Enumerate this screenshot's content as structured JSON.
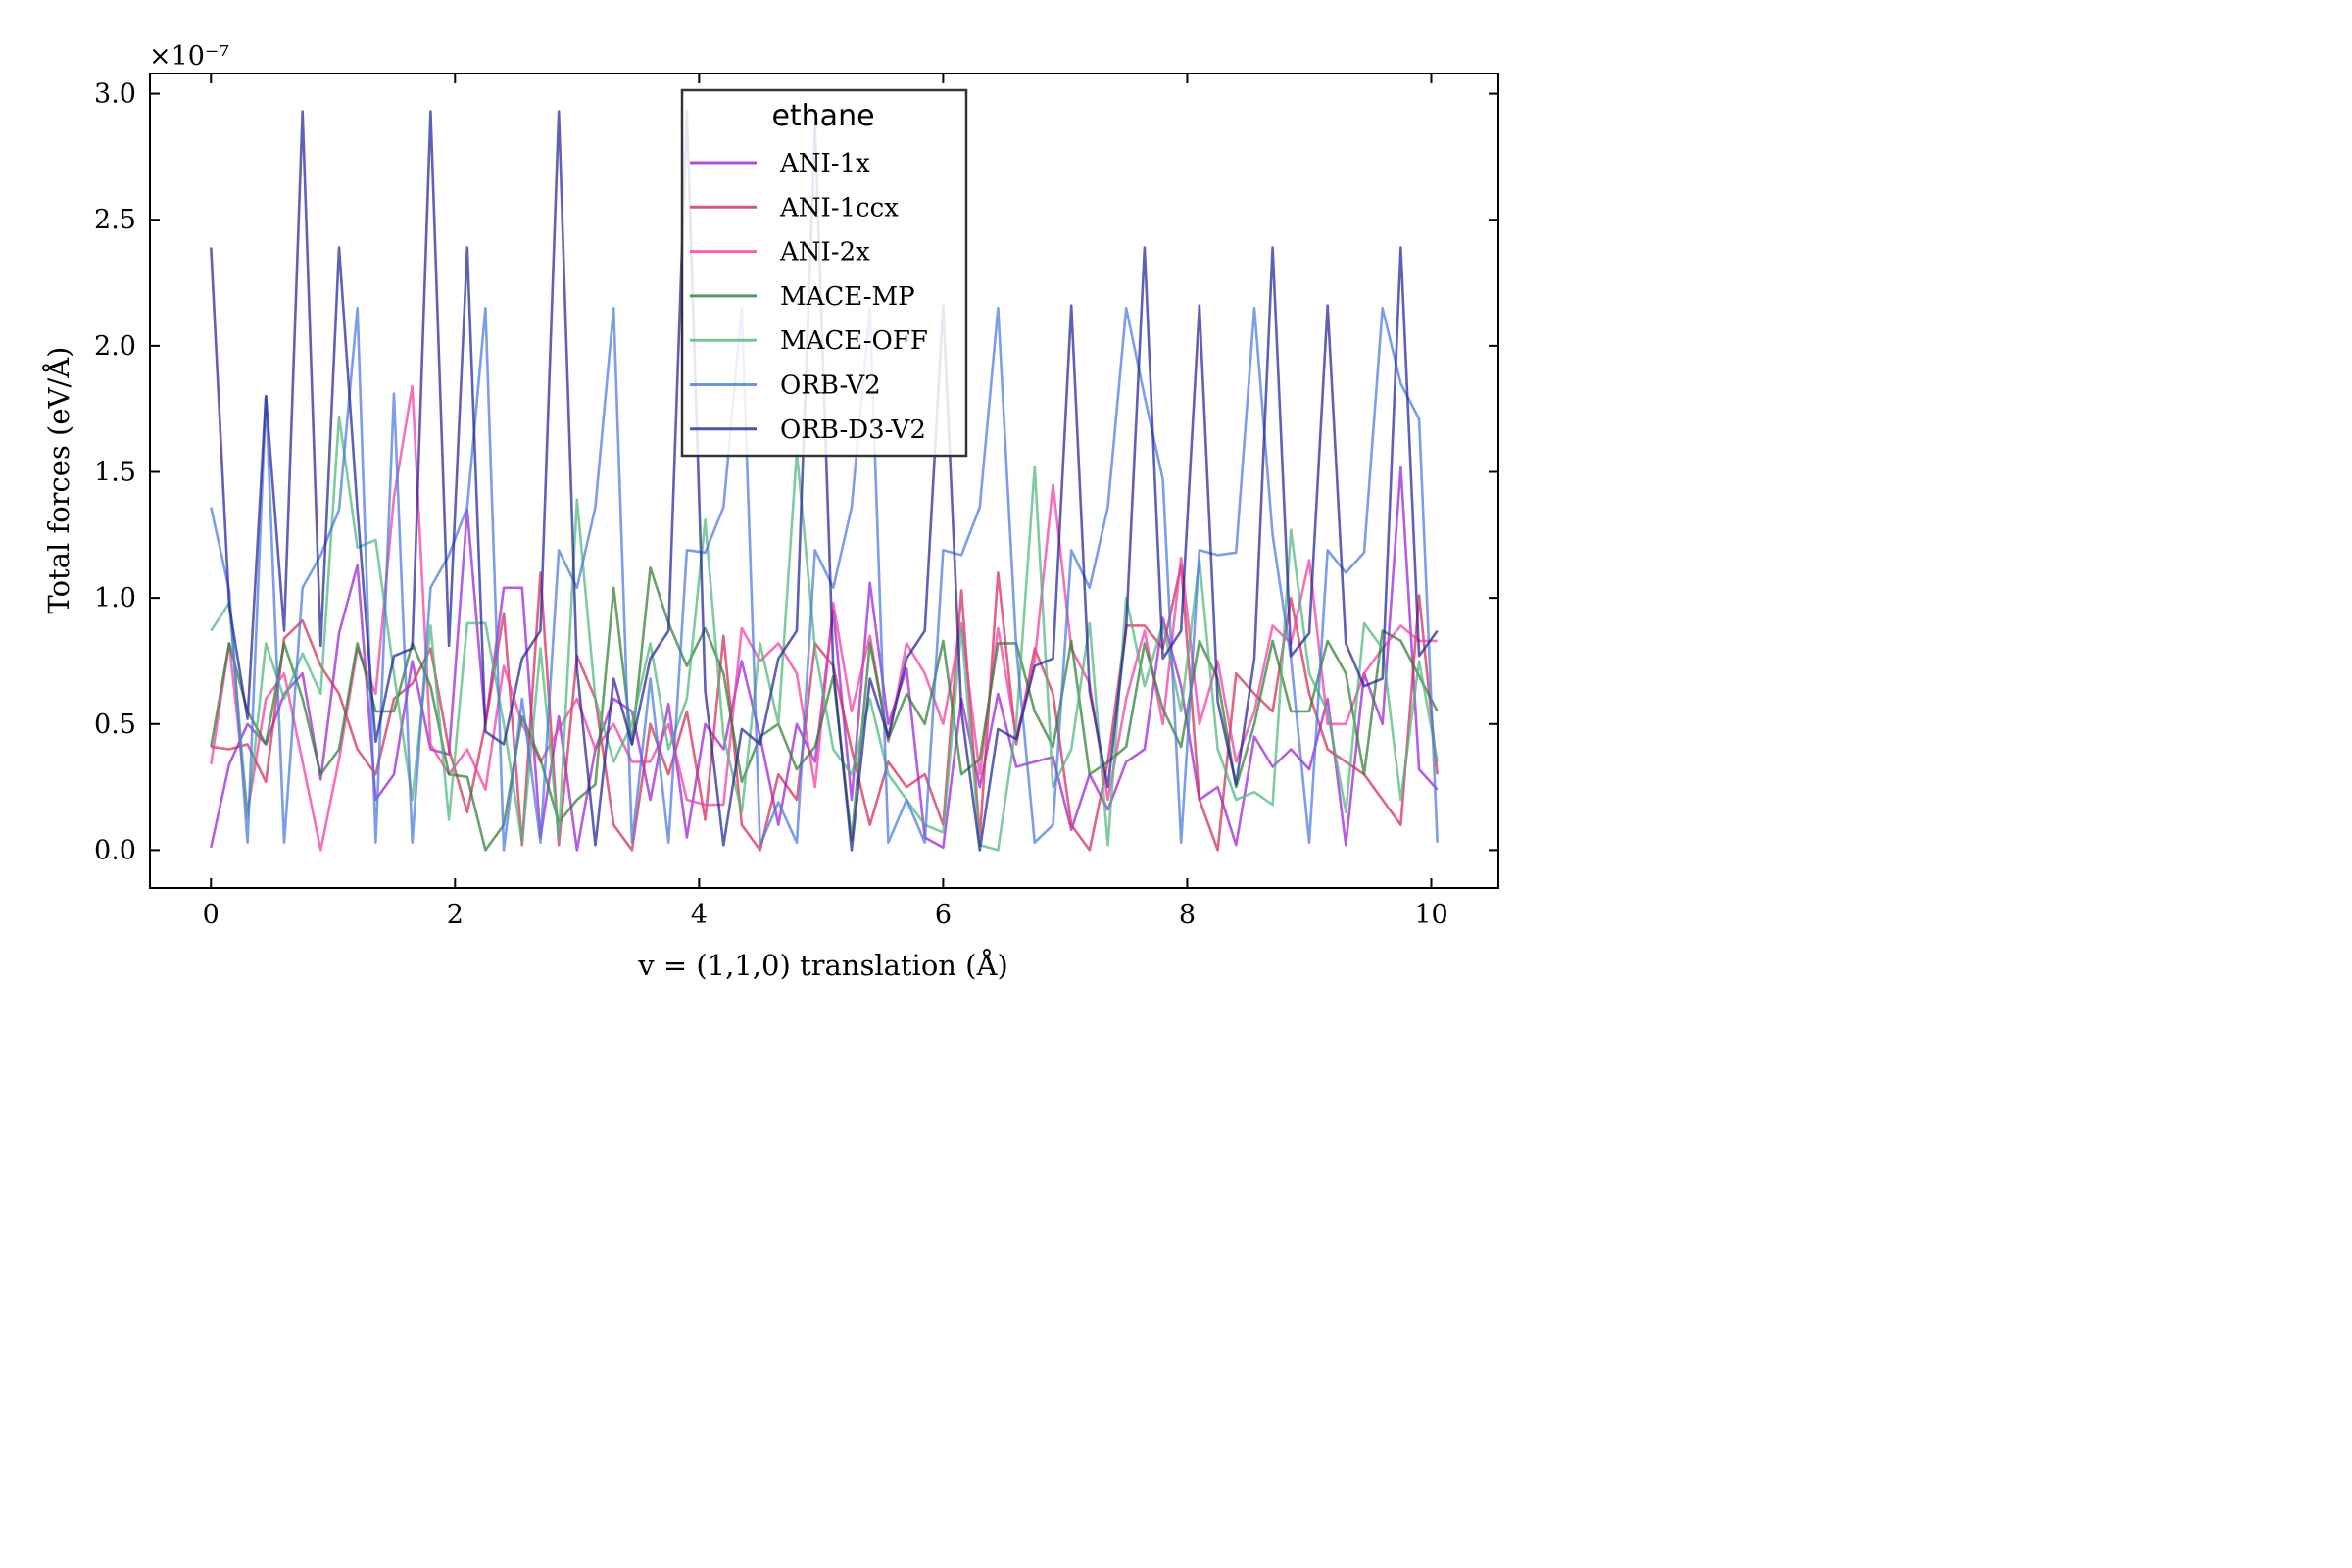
{
  "chart_data": {
    "type": "line",
    "xlabel": "v = (1,1,0)   translation (Å)",
    "ylabel": "Total forces   (eV/Å)",
    "y_multiplier": "×10⁻⁷",
    "xlim": [
      -0.5,
      10.55
    ],
    "ylim": [
      -0.15,
      3.08
    ],
    "xticks": [
      "0",
      "2",
      "4",
      "6",
      "8",
      "10"
    ],
    "yticks": [
      "0.0",
      "0.5",
      "1.0",
      "1.5",
      "2.0",
      "2.5",
      "3.0"
    ],
    "grid": false,
    "legend": {
      "title": "ethane",
      "placement": "top-center"
    },
    "x": [
      0,
      0.15,
      0.3,
      0.45,
      0.6,
      0.75,
      0.9,
      1.05,
      1.2,
      1.35,
      1.5,
      1.65,
      1.8,
      1.95,
      2.1,
      2.25,
      2.4,
      2.55,
      2.7,
      2.85,
      3.0,
      3.15,
      3.3,
      3.45,
      3.6,
      3.75,
      3.9,
      4.05,
      4.2,
      4.35,
      4.5,
      4.65,
      4.8,
      4.95,
      5.1,
      5.25,
      5.4,
      5.55,
      5.7,
      5.85,
      6.0,
      6.15,
      6.3,
      6.45,
      6.6,
      6.75,
      6.9,
      7.05,
      7.2,
      7.35,
      7.5,
      7.65,
      7.8,
      7.95,
      8.1,
      8.25,
      8.4,
      8.55,
      8.7,
      8.85,
      9.0,
      9.15,
      9.3,
      9.45,
      9.6,
      9.75,
      9.9,
      10.05
    ],
    "series": [
      {
        "name": "ANI-1x",
        "color": "#9b1fd6",
        "values": [
          0.01,
          0.34,
          0.5,
          0.42,
          0.62,
          0.7,
          0.28,
          0.86,
          1.13,
          0.2,
          0.3,
          0.75,
          0.4,
          0.38,
          1.35,
          0.5,
          1.04,
          1.04,
          0.05,
          0.53,
          0.0,
          0.4,
          0.6,
          0.55,
          0.2,
          0.58,
          0.05,
          0.5,
          0.4,
          0.75,
          0.45,
          0.1,
          0.5,
          0.35,
          0.95,
          0.2,
          1.06,
          0.5,
          0.72,
          0.05,
          0.01,
          0.6,
          0.25,
          0.62,
          0.33,
          0.35,
          0.37,
          0.08,
          0.3,
          0.16,
          0.35,
          0.4,
          0.92,
          0.65,
          0.2,
          0.25,
          0.02,
          0.45,
          0.33,
          0.4,
          0.32,
          0.6,
          0.02,
          0.7,
          0.5,
          1.52,
          0.32,
          0.24
        ]
      },
      {
        "name": "ANI-1ccx",
        "color": "#d12a56",
        "values": [
          0.41,
          0.4,
          0.42,
          0.27,
          0.84,
          0.91,
          0.73,
          0.62,
          0.4,
          0.3,
          0.6,
          0.66,
          0.8,
          0.4,
          0.15,
          0.5,
          0.94,
          0.02,
          1.1,
          0.02,
          0.77,
          0.6,
          0.1,
          0.0,
          0.5,
          0.3,
          0.55,
          0.12,
          0.85,
          0.1,
          0.0,
          0.3,
          0.2,
          0.82,
          0.73,
          0.4,
          0.1,
          0.35,
          0.25,
          0.3,
          0.1,
          1.03,
          0.05,
          1.1,
          0.42,
          0.8,
          0.62,
          0.1,
          0.0,
          0.35,
          0.89,
          0.89,
          0.8,
          1.13,
          0.2,
          0.0,
          0.7,
          0.62,
          0.55,
          1.0,
          0.62,
          0.4,
          0.35,
          0.3,
          0.2,
          0.1,
          1.01,
          0.3
        ]
      },
      {
        "name": "ANI-2x",
        "color": "#f23aa2",
        "values": [
          0.34,
          0.82,
          0.15,
          0.6,
          0.7,
          0.35,
          0.0,
          0.36,
          0.8,
          0.62,
          1.4,
          1.84,
          0.42,
          0.3,
          0.4,
          0.24,
          0.73,
          0.5,
          0.35,
          0.48,
          0.6,
          0.4,
          0.5,
          0.35,
          0.35,
          0.5,
          0.2,
          0.18,
          0.18,
          0.88,
          0.75,
          0.82,
          0.7,
          0.25,
          0.98,
          0.55,
          0.85,
          0.43,
          0.82,
          0.7,
          0.5,
          0.9,
          0.3,
          0.88,
          0.45,
          0.75,
          1.45,
          0.8,
          0.66,
          0.2,
          0.6,
          0.87,
          0.5,
          1.16,
          0.5,
          0.75,
          0.35,
          0.55,
          0.89,
          0.82,
          1.15,
          0.5,
          0.5,
          0.7,
          0.8,
          0.89,
          0.83,
          0.83
        ]
      },
      {
        "name": "MACE-MP",
        "color": "#2f7d32",
        "values": [
          0.41,
          0.82,
          0.55,
          0.42,
          0.82,
          0.6,
          0.3,
          0.4,
          0.82,
          0.55,
          0.55,
          0.82,
          0.65,
          0.3,
          0.29,
          0.0,
          0.1,
          0.53,
          0.36,
          0.11,
          0.2,
          0.26,
          1.04,
          0.42,
          1.12,
          0.9,
          0.73,
          0.88,
          0.7,
          0.27,
          0.45,
          0.5,
          0.32,
          0.41,
          0.69,
          0.04,
          0.82,
          0.44,
          0.62,
          0.5,
          0.83,
          0.3,
          0.36,
          0.82,
          0.82,
          0.55,
          0.41,
          0.83,
          0.3,
          0.35,
          0.41,
          0.82,
          0.56,
          0.41,
          0.83,
          0.68,
          0.25,
          0.5,
          0.83,
          0.55,
          0.55,
          0.83,
          0.7,
          0.3,
          0.87,
          0.83,
          0.69,
          0.55
        ]
      },
      {
        "name": "MACE-OFF",
        "color": "#4fb57d",
        "values": [
          0.87,
          0.98,
          0.13,
          0.82,
          0.6,
          0.78,
          0.62,
          1.72,
          1.2,
          1.23,
          0.7,
          0.2,
          0.89,
          0.12,
          0.9,
          0.9,
          0.5,
          0.03,
          0.8,
          0.05,
          1.39,
          0.6,
          0.35,
          0.5,
          0.82,
          0.4,
          0.6,
          1.31,
          0.45,
          0.15,
          0.82,
          0.5,
          1.58,
          0.8,
          0.4,
          0.3,
          0.6,
          0.3,
          0.2,
          0.1,
          0.07,
          0.88,
          0.02,
          0.0,
          0.5,
          1.52,
          0.25,
          0.4,
          0.9,
          0.02,
          1.0,
          0.65,
          0.9,
          0.55,
          1.15,
          0.4,
          0.2,
          0.23,
          0.18,
          1.27,
          0.7,
          0.55,
          0.15,
          0.9,
          0.8,
          0.2,
          0.75,
          0.35
        ]
      },
      {
        "name": "ORB-V2",
        "color": "#4a77e0",
        "values": [
          1.36,
          1.03,
          0.03,
          1.8,
          0.03,
          1.04,
          1.17,
          1.35,
          2.15,
          0.03,
          1.81,
          0.03,
          1.04,
          1.17,
          1.36,
          2.15,
          0.0,
          0.6,
          0.03,
          1.19,
          1.04,
          1.36,
          2.15,
          0.03,
          0.68,
          0.03,
          1.19,
          1.18,
          1.36,
          2.15,
          0.02,
          0.19,
          0.03,
          1.19,
          1.04,
          1.36,
          2.15,
          0.03,
          0.2,
          0.03,
          1.19,
          1.17,
          1.36,
          2.15,
          0.8,
          0.03,
          0.1,
          1.19,
          1.04,
          1.36,
          2.15,
          1.8,
          1.47,
          0.03,
          1.19,
          1.17,
          1.18,
          2.15,
          1.25,
          0.76,
          0.03,
          1.19,
          1.1,
          1.18,
          2.15,
          1.85,
          1.71,
          0.03
        ]
      },
      {
        "name": "ORB-D3-V2",
        "color": "#23249a",
        "values": [
          2.39,
          0.97,
          0.52,
          1.8,
          0.87,
          2.93,
          0.81,
          2.39,
          1.35,
          0.43,
          0.77,
          0.8,
          2.93,
          0.81,
          2.39,
          0.47,
          0.42,
          0.76,
          0.87,
          2.93,
          0.72,
          0.02,
          0.68,
          0.42,
          0.76,
          0.87,
          2.93,
          0.63,
          0.02,
          0.48,
          0.42,
          0.76,
          0.87,
          2.87,
          0.72,
          0.0,
          0.68,
          0.45,
          0.76,
          0.87,
          2.16,
          0.55,
          0.0,
          0.48,
          0.44,
          0.73,
          0.76,
          2.16,
          0.63,
          0.25,
          0.88,
          2.39,
          0.76,
          0.87,
          2.16,
          0.59,
          0.26,
          0.76,
          2.39,
          0.77,
          0.86,
          2.16,
          0.82,
          0.65,
          0.68,
          2.39,
          0.77,
          0.87
        ]
      }
    ]
  }
}
